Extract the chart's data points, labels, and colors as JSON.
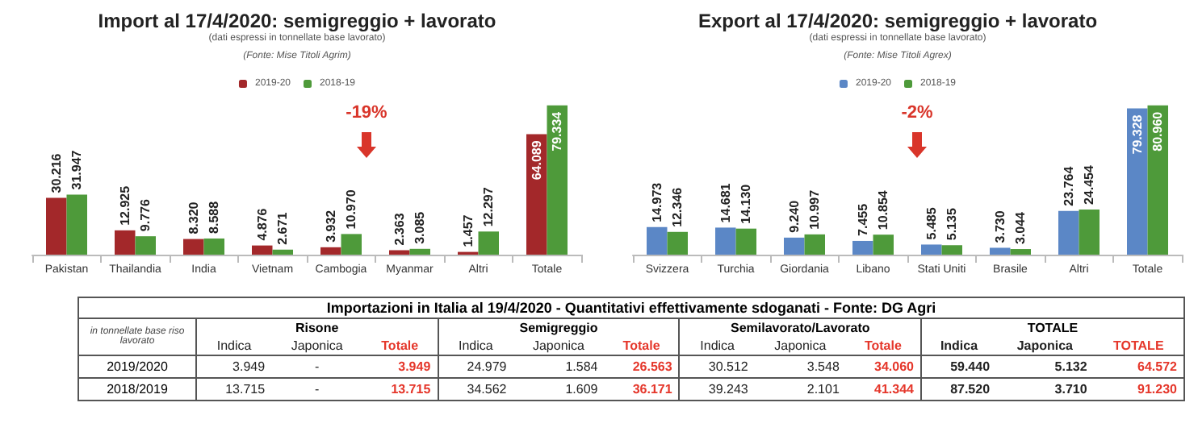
{
  "chart_data": [
    {
      "type": "bar",
      "title": "Import al 17/4/2020: semigreggio + lavorato",
      "subtitle": "(dati espressi in tonnellate base lavorato)",
      "annotations": [
        "(Fonte: Mise Titoli Agrim)",
        "-19%"
      ],
      "categories": [
        "Pakistan",
        "Thailandia",
        "India",
        "Vietnam",
        "Cambogia",
        "Myanmar",
        "Altri",
        "Totale"
      ],
      "legend": "top",
      "series": [
        {
          "name": "2019-20",
          "color": "#a3282a",
          "values": [
            30216,
            12925,
            8320,
            4876,
            3932,
            2363,
            1457,
            64089
          ],
          "value_labels": [
            "30.216",
            "12.925",
            "8.320",
            "4.876",
            "3.932",
            "2.363",
            "1.457",
            "64.089"
          ]
        },
        {
          "name": "2018-19",
          "color": "#4e9a3a",
          "values": [
            31947,
            9776,
            8588,
            2671,
            10970,
            3085,
            12297,
            79334
          ],
          "value_labels": [
            "31.947",
            "9.776",
            "8.588",
            "2.671",
            "10.970",
            "3.085",
            "12.297",
            "79.334"
          ]
        }
      ]
    },
    {
      "type": "bar",
      "title": "Export al 17/4/2020: semigreggio + lavorato",
      "subtitle": "(dati espressi in tonnellate base lavorato)",
      "annotations": [
        "(Fonte: Mise Titoli Agrex)",
        "-2%"
      ],
      "categories": [
        "Svizzera",
        "Turchia",
        "Giordania",
        "Libano",
        "Stati Uniti",
        "Brasile",
        "Altri",
        "Totale"
      ],
      "legend": "top",
      "series": [
        {
          "name": "2019-20",
          "color": "#5b87c6",
          "values": [
            14973,
            14681,
            9240,
            7455,
            5485,
            3730,
            23764,
            79328
          ],
          "value_labels": [
            "14.973",
            "14.681",
            "9.240",
            "7.455",
            "5.485",
            "3.730",
            "23.764",
            "79.328"
          ]
        },
        {
          "name": "2018-19",
          "color": "#4e9a3a",
          "values": [
            12346,
            14130,
            10997,
            10854,
            5135,
            3044,
            24454,
            80960
          ],
          "value_labels": [
            "12.346",
            "14.130",
            "10.997",
            "10.854",
            "5.135",
            "3.044",
            "24.454",
            "80.960"
          ]
        }
      ]
    },
    {
      "type": "other",
      "title": "Importazioni in Italia al 19/4/2020 - Quantitativi effettivamente sdoganati - Fonte: DG Agri",
      "annotations": [
        "in tonnellate base riso lavorato",
        "Risone",
        "Semigreggio",
        "Semilavorato/Lavorato",
        "TOTALE"
      ],
      "categories": [
        "Indica",
        "Japonica",
        "Totale",
        "Indica",
        "Japonica",
        "Totale",
        "Indica",
        "Japonica",
        "Totale",
        "Indica",
        "Japonica",
        "TOTALE"
      ],
      "y_categories": [
        "2019/2020",
        "2018/2019"
      ],
      "cell_labels": [
        [
          "3.949",
          "-",
          "3.949",
          "24.979",
          "1.584",
          "26.563",
          "30.512",
          "3.548",
          "34.060",
          "59.440",
          "5.132",
          "64.572"
        ],
        [
          "13.715",
          "-",
          "13.715",
          "34.562",
          "1.609",
          "36.171",
          "39.243",
          "2.101",
          "41.344",
          "87.520",
          "3.710",
          "91.230"
        ]
      ]
    }
  ]
}
